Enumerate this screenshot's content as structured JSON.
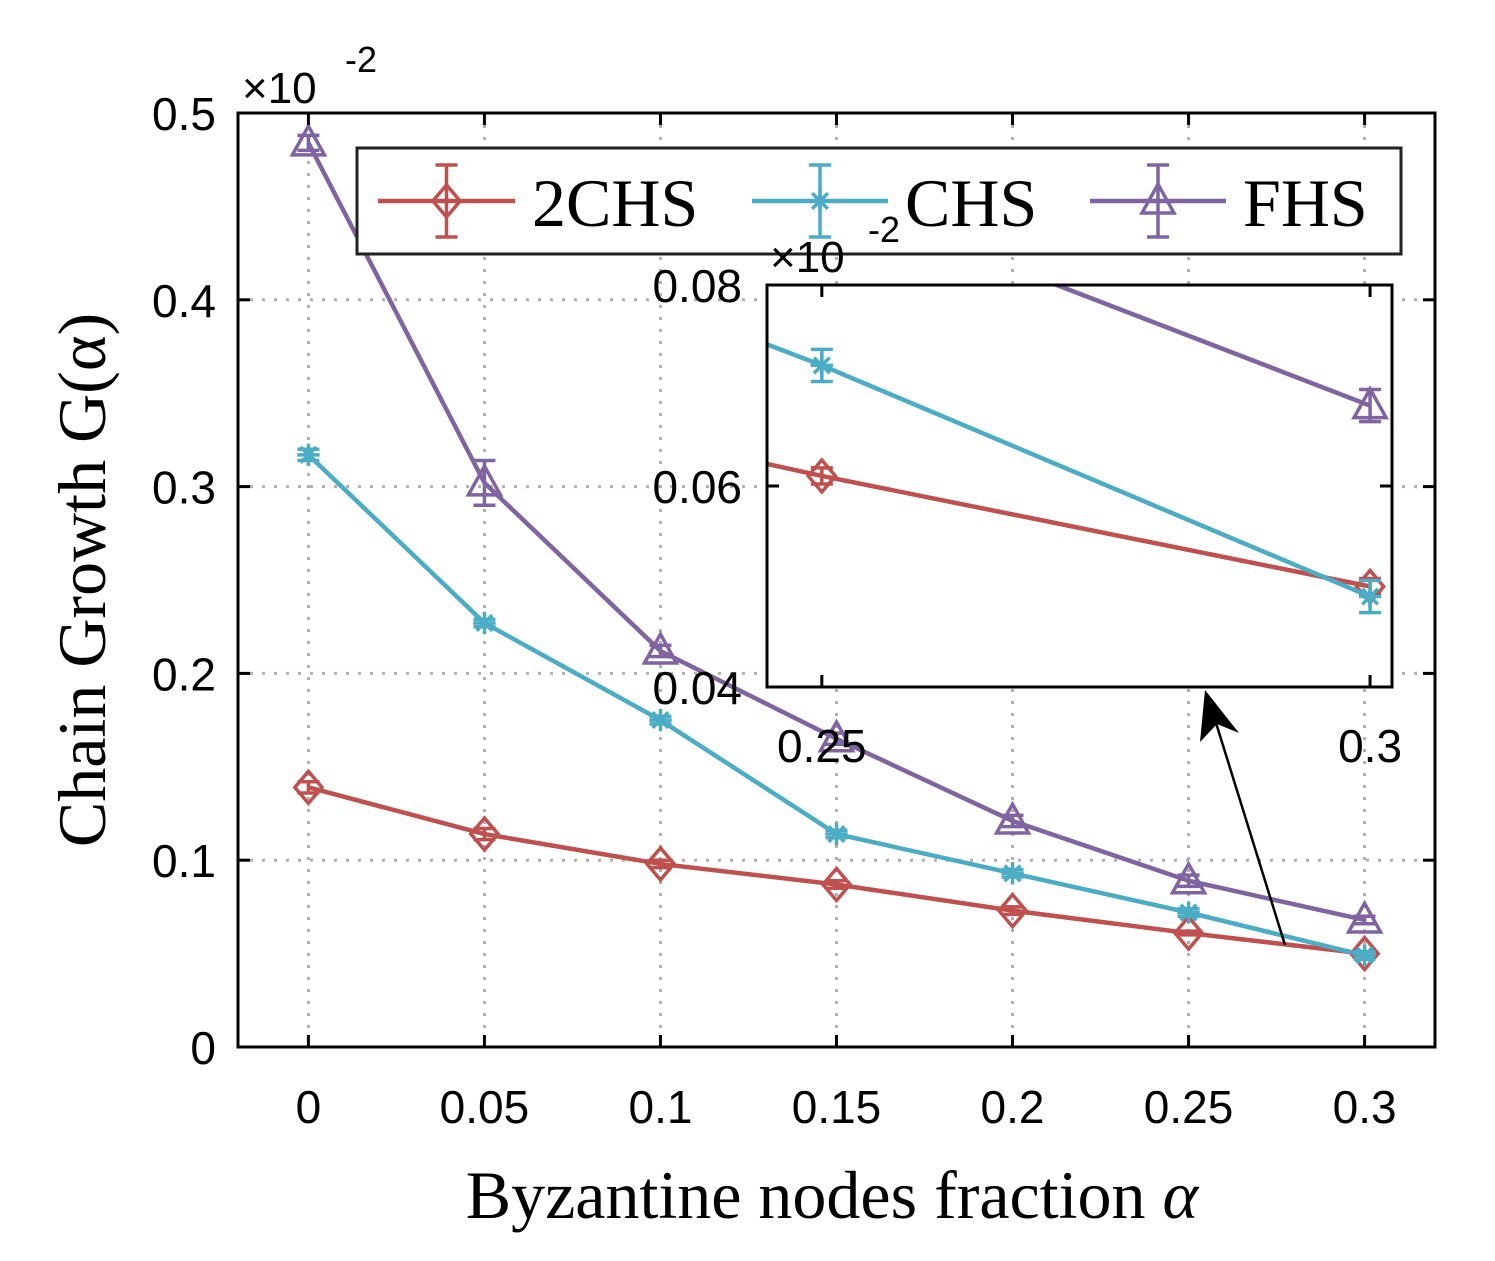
{
  "chart_data": {
    "type": "line",
    "x": [
      0,
      0.05,
      0.1,
      0.15,
      0.2,
      0.25,
      0.3
    ],
    "x_tick_labels": [
      "0",
      "0.05",
      "0.1",
      "0.15",
      "0.2",
      "0.25",
      "0.3"
    ],
    "y_tick_labels": [
      "0",
      "0.1",
      "0.2",
      "0.3",
      "0.4",
      "0.5"
    ],
    "ylim": [
      0,
      0.5
    ],
    "xlim": [
      -0.02,
      0.32
    ],
    "scale_prefix": "×10",
    "scale_exponent": "-2",
    "xlabel_text": "Byzantine nodes fraction ",
    "xlabel_symbol": "α",
    "ylabel": "Chain Growth G(α)",
    "grid": true,
    "legend_position": "top",
    "series": [
      {
        "name": "2CHS",
        "color": "#c0504d",
        "marker": "diamond",
        "values": [
          0.139,
          0.114,
          0.098,
          0.087,
          0.073,
          0.061,
          0.05
        ],
        "errors": [
          0.003,
          0.003,
          0.002,
          0.002,
          0.002,
          0.001,
          0.001
        ]
      },
      {
        "name": "CHS",
        "color": "#4bacc6",
        "marker": "asterisk",
        "values": [
          0.317,
          0.227,
          0.175,
          0.114,
          0.093,
          0.072,
          0.049
        ],
        "errors": [
          0.003,
          0.002,
          0.002,
          0.002,
          0.002,
          0.002,
          0.002
        ]
      },
      {
        "name": "FHS",
        "color": "#8064a2",
        "marker": "triangle",
        "values": [
          0.484,
          0.302,
          0.212,
          0.165,
          0.121,
          0.089,
          0.068
        ],
        "errors": [
          0.004,
          0.012,
          0.003,
          0.003,
          0.003,
          0.003,
          0.002
        ]
      }
    ],
    "inset": {
      "x": [
        0.25,
        0.3
      ],
      "x_tick_labels": [
        "0.25",
        "0.3"
      ],
      "y_tick_labels": [
        "0.04",
        "0.06",
        "0.08"
      ],
      "ylim": [
        0.04,
        0.08
      ],
      "xlim": [
        0.245,
        0.302
      ]
    }
  }
}
